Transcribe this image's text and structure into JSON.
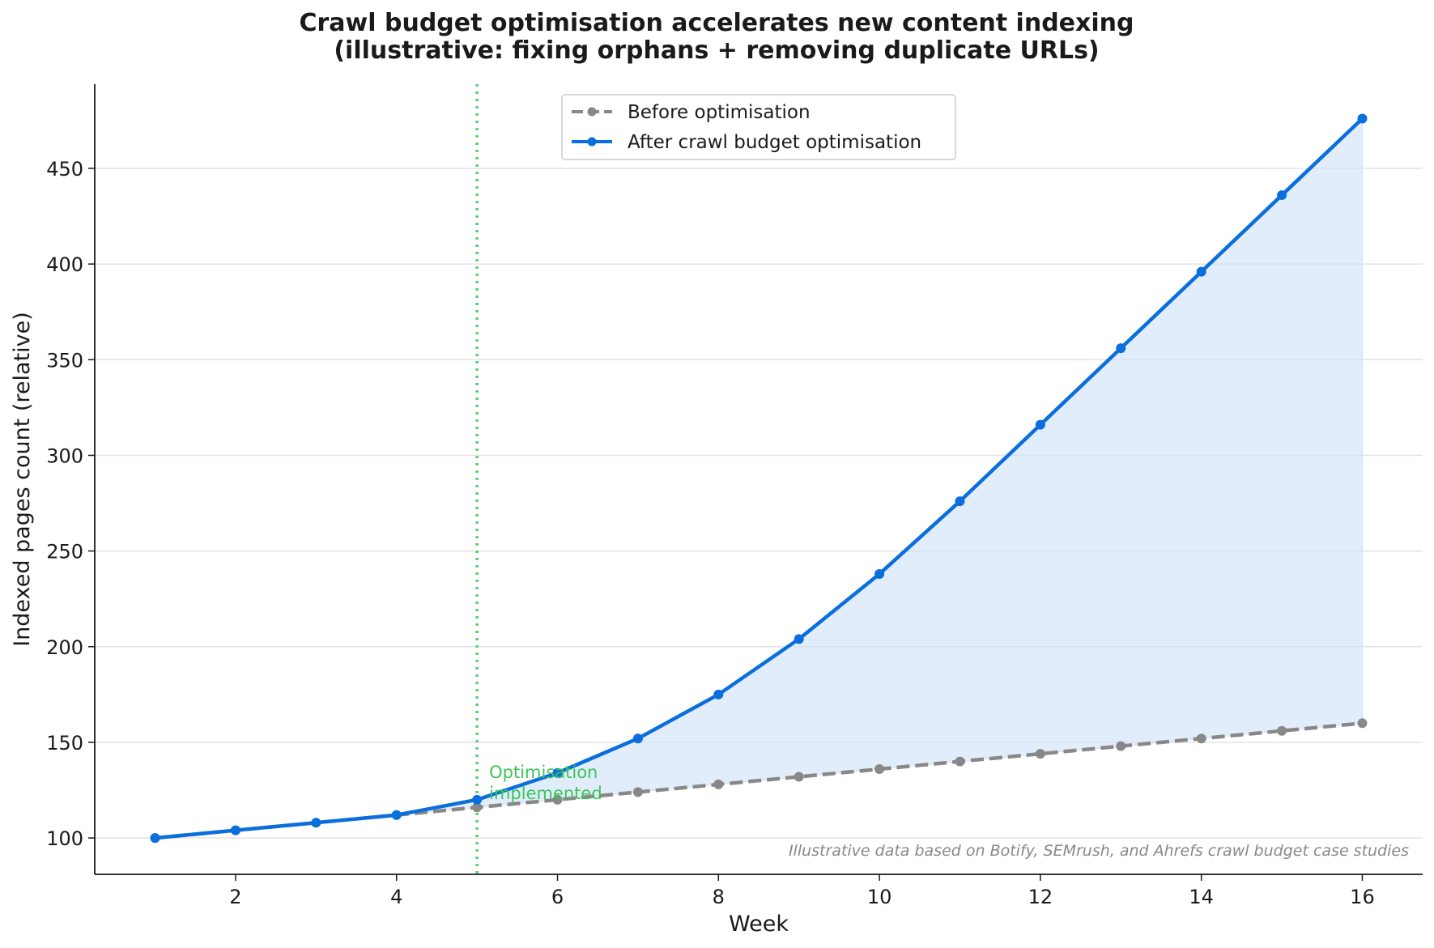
{
  "chart_data": {
    "type": "line",
    "title_line1": "Crawl budget optimisation accelerates new content indexing",
    "title_line2": "(illustrative: fixing orphans + removing duplicate URLs)",
    "xlabel": "Week",
    "ylabel": "Indexed pages count (relative)",
    "xlim": [
      0.25,
      16.75
    ],
    "ylim": [
      81,
      494
    ],
    "x_ticks": [
      2,
      4,
      6,
      8,
      10,
      12,
      14,
      16
    ],
    "y_ticks": [
      100,
      150,
      200,
      250,
      300,
      350,
      400,
      450
    ],
    "grid": "horizontal",
    "legend_position": "top-center",
    "x": [
      1,
      2,
      3,
      4,
      5,
      6,
      7,
      8,
      9,
      10,
      11,
      12,
      13,
      14,
      15,
      16
    ],
    "series": [
      {
        "name": "Before optimisation",
        "style": "dashed",
        "color": "#888888",
        "values": [
          100,
          104,
          108,
          112,
          116,
          120,
          124,
          128,
          132,
          136,
          140,
          144,
          148,
          152,
          156,
          160
        ]
      },
      {
        "name": "After crawl budget optimisation",
        "style": "solid",
        "color": "#0a6fdc",
        "values": [
          100,
          104,
          108,
          112,
          120,
          134,
          152,
          175,
          204,
          238,
          276,
          316,
          356,
          396,
          436,
          476
        ]
      }
    ],
    "fill_between": {
      "color": "#cfe1f8",
      "from_x": 4
    },
    "vline": {
      "x": 5,
      "color": "#5ad06f",
      "label_line1": "Optimisation",
      "label_line2": "implemented",
      "label_color": "#3cc45a"
    },
    "footnote": "Illustrative data based on Botify, SEMrush, and Ahrefs crawl budget case studies"
  }
}
